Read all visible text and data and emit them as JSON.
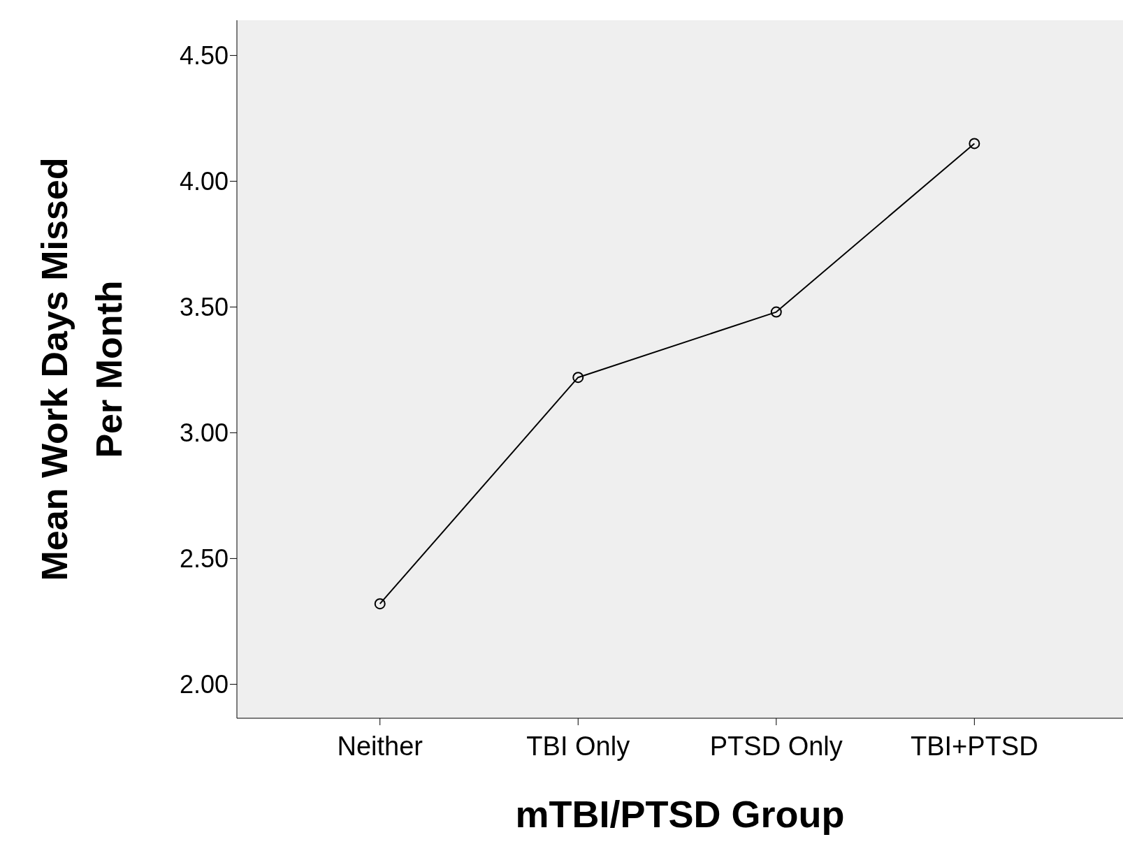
{
  "chart_data": {
    "type": "line",
    "xlabel": "mTBI/PTSD Group",
    "ylabel": "Mean Work Days Missed Per Month",
    "categories": [
      "Neither",
      "TBI Only",
      "PTSD Only",
      "TBI+PTSD"
    ],
    "series": [
      {
        "color": "#000000",
        "values": [
          2.32,
          3.22,
          3.48,
          4.15
        ]
      }
    ],
    "ylim": [
      1.865,
      4.64
    ],
    "yticks": [
      {
        "value": 2,
        "label": "2.00"
      },
      {
        "value": 2.5,
        "label": "2.50"
      },
      {
        "value": 3,
        "label": "3.00"
      },
      {
        "value": 3.5,
        "label": "3.50"
      },
      {
        "value": 4,
        "label": "4.00"
      },
      {
        "value": 4.5,
        "label": "4.50"
      }
    ],
    "grid": false,
    "marker": "circle",
    "line_style": "solid"
  }
}
